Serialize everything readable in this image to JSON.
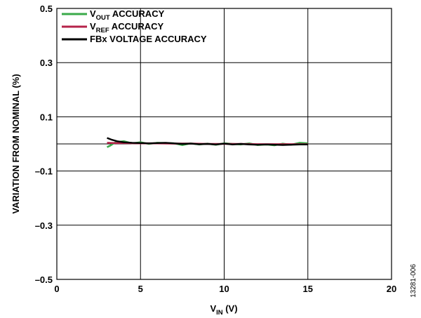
{
  "chart_data": {
    "type": "line",
    "xlabel": {
      "main": "V",
      "sub": "IN",
      "suffix": " (V)"
    },
    "ylabel": "VARIATION FROM NOMINAL (%)",
    "xlim": [
      0,
      20
    ],
    "ylim": [
      -0.5,
      0.5
    ],
    "xticks": [
      0,
      5,
      10,
      15,
      20
    ],
    "xtick_labels": [
      "0",
      "5",
      "10",
      "15",
      "20"
    ],
    "yticks": [
      0.5,
      0.3,
      0.1,
      -0.1,
      -0.3,
      -0.5
    ],
    "ytick_labels": [
      "0.5",
      "0.3",
      "0.1",
      "–0.1",
      "–0.3",
      "–0.5"
    ],
    "grid": true,
    "legend_position": "top-left",
    "series": [
      {
        "name": "VOUT ACCURACY",
        "legend": {
          "main": "V",
          "sub": "OUT",
          "suffix": " ACCURACY"
        },
        "color": "#3aaa4a",
        "x": [
          3.0,
          3.2,
          3.5,
          4.0,
          4.5,
          5.0,
          5.5,
          6.0,
          6.5,
          7.0,
          7.5,
          8.0,
          8.5,
          9.0,
          9.5,
          10.0,
          10.5,
          11.0,
          11.5,
          12.0,
          12.5,
          13.0,
          13.5,
          14.0,
          14.5,
          15.0
        ],
        "y": [
          -0.012,
          -0.006,
          0.006,
          0.01,
          0.002,
          0.006,
          0.0,
          0.004,
          0.003,
          0.002,
          -0.004,
          0.002,
          -0.002,
          0.001,
          -0.003,
          0.002,
          0.0,
          -0.002,
          0.002,
          -0.004,
          -0.002,
          -0.005,
          0.001,
          -0.003,
          0.004,
          0.002
        ]
      },
      {
        "name": "VREF ACCURACY",
        "legend": {
          "main": "V",
          "sub": "REF",
          "suffix": " ACCURACY"
        },
        "color": "#b5234a",
        "x": [
          3.0,
          3.5,
          4.0,
          5.0,
          6.0,
          7.0,
          8.0,
          9.0,
          10.0,
          11.0,
          12.0,
          13.0,
          14.0,
          15.0
        ],
        "y": [
          0.004,
          0.003,
          0.003,
          0.002,
          0.002,
          0.001,
          0.001,
          0.0,
          0.0,
          0.0,
          -0.001,
          -0.001,
          -0.001,
          -0.001
        ]
      },
      {
        "name": "FBx VOLTAGE ACCURACY",
        "legend": {
          "main": "FBx VOLTAGE ACCURACY",
          "sub": "",
          "suffix": ""
        },
        "color": "#000000",
        "x": [
          3.0,
          3.3,
          3.6,
          4.0,
          4.5,
          5.0,
          5.5,
          6.0,
          6.5,
          7.0,
          7.5,
          8.0,
          8.5,
          9.0,
          9.5,
          10.0,
          10.5,
          11.0,
          11.5,
          12.0,
          12.5,
          13.0,
          13.5,
          14.0,
          14.5,
          15.0
        ],
        "y": [
          0.022,
          0.015,
          0.01,
          0.006,
          0.004,
          0.003,
          0.002,
          0.003,
          0.004,
          0.002,
          0.0,
          0.001,
          -0.001,
          0.0,
          -0.002,
          0.001,
          -0.002,
          0.0,
          -0.002,
          -0.003,
          -0.002,
          -0.003,
          -0.004,
          -0.003,
          -0.002,
          -0.002
        ]
      }
    ]
  },
  "figure_id": "13281-006"
}
